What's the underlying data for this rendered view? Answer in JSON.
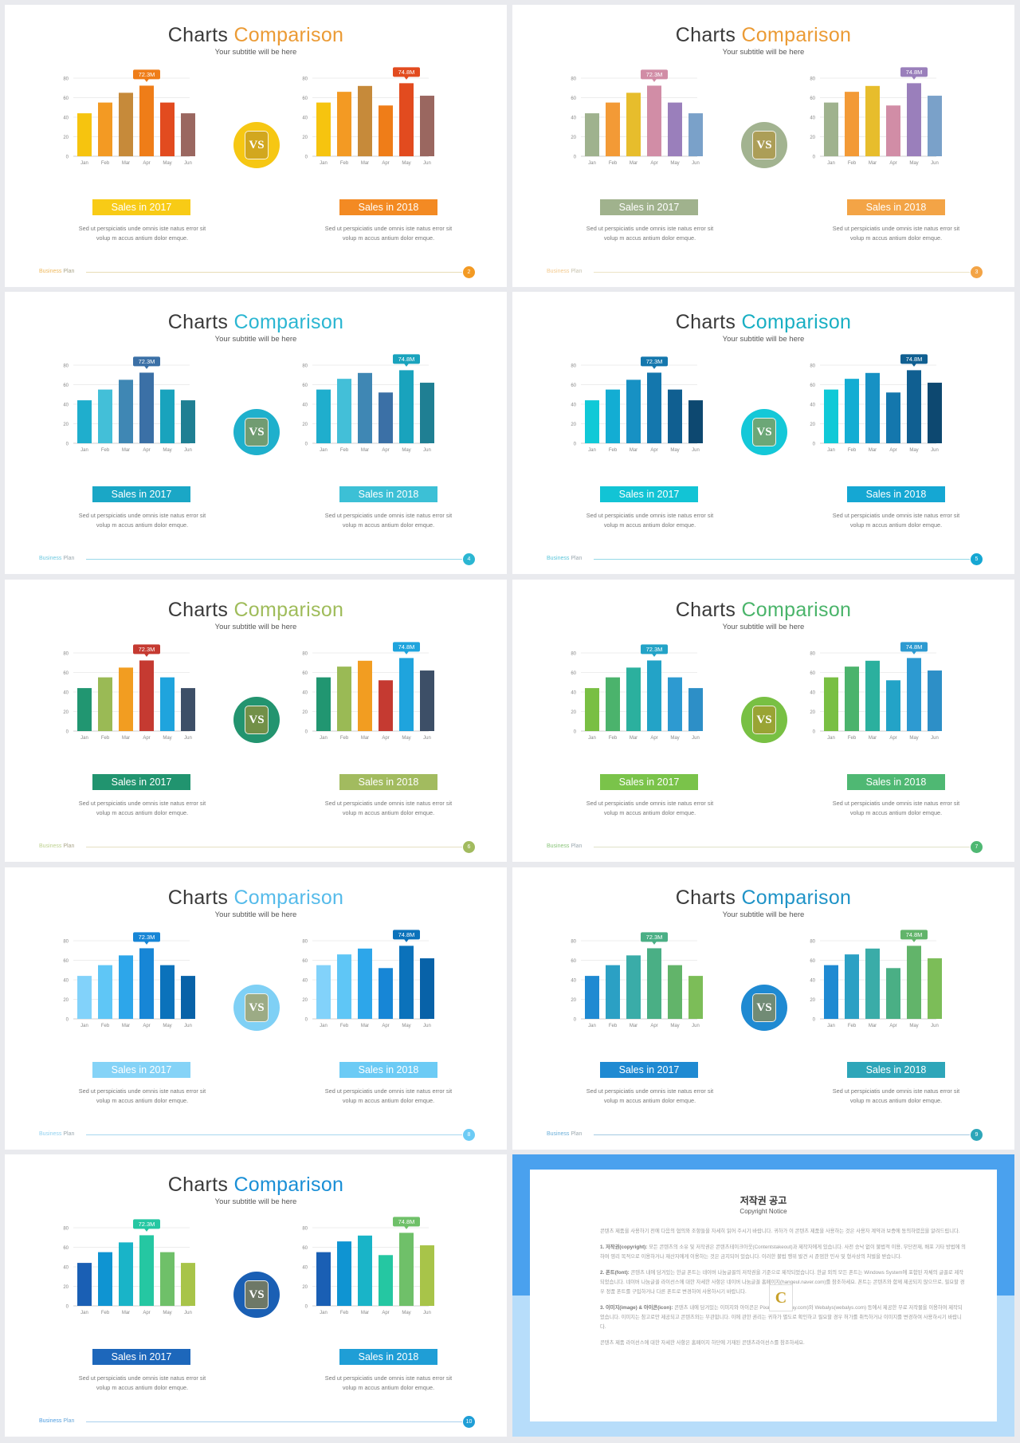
{
  "slides": [
    {
      "title_main": "Charts",
      "title_accent": "Comparison",
      "subtitle": "Your subtitle will be here",
      "accent": "#eb9b35",
      "circle_color": "#f6c713",
      "line_color": "#e8ddb5",
      "footer_a": "#eeb85c",
      "footer_b": "#aaa58a",
      "colors1": [
        "#f6c40f",
        "#f39a23",
        "#c68a3a",
        "#ef7d18",
        "#e24b1f",
        "#9a6760"
      ],
      "colors2": [
        "#f6c40f",
        "#f39a23",
        "#c68a3a",
        "#ef7d18",
        "#e24b1f",
        "#9a6760"
      ],
      "label1_bg": "#f8cb16",
      "label2_bg": "#f38a23",
      "callout1": "#ef7d18",
      "callout2": "#e24b1f",
      "page": "2",
      "page_bg": "#f39a23"
    },
    {
      "title_main": "Charts",
      "title_accent": "Comparison",
      "subtitle": "Your subtitle will be here",
      "accent": "#eb9b35",
      "circle_color": "#a2b390",
      "line_color": "#ede3c6",
      "footer_a": "#f3c98d",
      "footer_b": "#c7c2ad",
      "colors1": [
        "#9fb28e",
        "#f39a36",
        "#e7bd2c",
        "#d18da6",
        "#9a7fbb",
        "#7aa1c9"
      ],
      "colors2": [
        "#9fb28e",
        "#f39a36",
        "#e7bd2c",
        "#d18da6",
        "#9a7fbb",
        "#7aa1c9"
      ],
      "label1_bg": "#a0b28d",
      "label2_bg": "#f3a446",
      "callout1": "#d18da6",
      "callout2": "#9a7fbb",
      "page": "3",
      "page_bg": "#f3a446"
    },
    {
      "title_main": "Charts",
      "title_accent": "Comparison",
      "subtitle": "Your subtitle will be here",
      "accent": "#2bb6d2",
      "circle_color": "#1fb0cc",
      "line_color": "#9ad8ea",
      "footer_a": "#6fc9e0",
      "footer_b": "#9aa7ae",
      "colors1": [
        "#1faecd",
        "#43bfd8",
        "#3f87b4",
        "#3b70a6",
        "#19a3bd",
        "#1f7f93"
      ],
      "colors2": [
        "#1faecd",
        "#43bfd8",
        "#3f87b4",
        "#3b70a6",
        "#19a3bd",
        "#1f7f93"
      ],
      "label1_bg": "#1aa7c6",
      "label2_bg": "#3cc0d6",
      "callout1": "#3b70a6",
      "callout2": "#19a3bd",
      "page": "4",
      "page_bg": "#2bb6d2"
    },
    {
      "title_main": "Charts",
      "title_accent": "Comparison",
      "subtitle": "Your subtitle will be here",
      "accent": "#19afc3",
      "circle_color": "#14c8d8",
      "line_color": "#93d9e6",
      "footer_a": "#5bc6da",
      "footer_b": "#9aa7ae",
      "colors1": [
        "#10c9d7",
        "#13add3",
        "#1791c4",
        "#1477ad",
        "#105f91",
        "#0d4870"
      ],
      "colors2": [
        "#10c9d7",
        "#13add3",
        "#1791c4",
        "#1477ad",
        "#105f91",
        "#0d4870"
      ],
      "label1_bg": "#12c4d5",
      "label2_bg": "#15a7d3",
      "callout1": "#1477ad",
      "callout2": "#105f91",
      "page": "5",
      "page_bg": "#15a7d3"
    },
    {
      "title_main": "Charts",
      "title_accent": "Comparison",
      "subtitle": "Your subtitle will be here",
      "accent": "#9fbc5a",
      "circle_color": "#23946f",
      "line_color": "#e5e0c2",
      "footer_a": "#bdd18e",
      "footer_b": "#aaa58a",
      "colors1": [
        "#219671",
        "#9aba55",
        "#f29d21",
        "#c53a31",
        "#1fa4dd",
        "#3d4f67"
      ],
      "colors2": [
        "#219671",
        "#9aba55",
        "#f29d21",
        "#c53a31",
        "#1fa4dd",
        "#3d4f67"
      ],
      "label1_bg": "#21946f",
      "label2_bg": "#a2bb5f",
      "callout1": "#c53a31",
      "callout2": "#1fa4dd",
      "page": "6",
      "page_bg": "#a2bb5f"
    },
    {
      "title_main": "Charts",
      "title_accent": "Comparison",
      "subtitle": "Your subtitle will be here",
      "accent": "#4ab46a",
      "circle_color": "#78c043",
      "line_color": "#e0e1c8",
      "footer_a": "#8ac47a",
      "footer_b": "#9aa7ae",
      "colors1": [
        "#79bf43",
        "#4bb36c",
        "#2bb09e",
        "#23a3c7",
        "#2d9ad1",
        "#2d8fc7"
      ],
      "colors2": [
        "#79bf43",
        "#4bb36c",
        "#2bb09e",
        "#23a3c7",
        "#2d9ad1",
        "#2d8fc7"
      ],
      "label1_bg": "#7ac34a",
      "label2_bg": "#4fb873",
      "callout1": "#23a3c7",
      "callout2": "#2d9ad1",
      "page": "7",
      "page_bg": "#4fb873"
    },
    {
      "title_main": "Charts",
      "title_accent": "Comparison",
      "subtitle": "Your subtitle will be here",
      "accent": "#56bbea",
      "circle_color": "#7fd0f5",
      "line_color": "#a8d8f0",
      "footer_a": "#8fd0ef",
      "footer_b": "#9aa7ae",
      "colors1": [
        "#82d2fa",
        "#5fc6f6",
        "#2da6ea",
        "#1786d6",
        "#0b72bb",
        "#0862a8"
      ],
      "colors2": [
        "#82d2fa",
        "#5fc6f6",
        "#2da6ea",
        "#1786d6",
        "#0b72bb",
        "#0862a8"
      ],
      "label1_bg": "#85d3f7",
      "label2_bg": "#6ccbf5",
      "callout1": "#1786d6",
      "callout2": "#0b72bb",
      "page": "8",
      "page_bg": "#6ccbf5"
    },
    {
      "title_main": "Charts",
      "title_accent": "Comparison",
      "subtitle": "Your subtitle will be here",
      "accent": "#1f93c7",
      "circle_color": "#1f8ad2",
      "line_color": "#a4c9e2",
      "footer_a": "#6aaed8",
      "footer_b": "#9aa7ae",
      "colors1": [
        "#1f8ad2",
        "#2ba0c4",
        "#3aaca8",
        "#4aaf85",
        "#62b46a",
        "#7cbd58"
      ],
      "colors2": [
        "#1f8ad2",
        "#2ba0c4",
        "#3aaca8",
        "#4aaf85",
        "#62b46a",
        "#7cbd58"
      ],
      "label1_bg": "#1f8ad2",
      "label2_bg": "#2ea6b9",
      "callout1": "#4aaf85",
      "callout2": "#62b46a",
      "page": "9",
      "page_bg": "#2ea6b9"
    },
    {
      "title_main": "Charts",
      "title_accent": "Comparison",
      "subtitle": "Your subtitle will be here",
      "accent": "#1a8fd6",
      "circle_color": "#1a5fb4",
      "line_color": "#a9d0ed",
      "footer_a": "#4b9be0",
      "footer_b": "#6aa8d9",
      "colors1": [
        "#1a5fb4",
        "#0f94d2",
        "#19b4c8",
        "#25c7a2",
        "#6fc069",
        "#a8c449"
      ],
      "colors2": [
        "#1a5fb4",
        "#0f94d2",
        "#19b4c8",
        "#25c7a2",
        "#6fc069",
        "#a8c449"
      ],
      "label1_bg": "#1d67bb",
      "label2_bg": "#1f9ed6",
      "callout1": "#25c7a2",
      "callout2": "#6fc069",
      "page": "10",
      "page_bg": "#1f9ed6"
    }
  ],
  "common": {
    "label1": "Sales in 2017",
    "label2": "Sales in 2018",
    "desc": "Sed ut perspiciatis unde omnis iste natus error sit volup m accus antium dolor emque.",
    "footer_word1": "Business",
    "footer_word2": "Plan",
    "vs_logo": "VS"
  },
  "chart_data": [
    {
      "type": "bar",
      "categories": [
        "Jan",
        "Feb",
        "Mar",
        "Apr",
        "May",
        "Jun"
      ],
      "values": [
        44,
        55,
        65,
        72.3,
        55,
        44
      ],
      "ylim": [
        0,
        80
      ],
      "yticks": [
        0,
        20,
        40,
        60,
        80
      ],
      "callout_index": 3,
      "callout_label": "72.3M"
    },
    {
      "type": "bar",
      "categories": [
        "Jan",
        "Feb",
        "Mar",
        "Apr",
        "May",
        "Jun"
      ],
      "values": [
        55,
        66,
        72,
        52,
        74.8,
        62
      ],
      "ylim": [
        0,
        80
      ],
      "yticks": [
        0,
        20,
        40,
        60,
        80
      ],
      "callout_index": 4,
      "callout_label": "74.8M"
    }
  ],
  "notice": {
    "title": "저작권 공고",
    "subtitle": "Copyright Notice",
    "p0": "콘텐츠 제품을 사용하기 전에 다음의 협의와 조항들을 자세히 읽어 주시기 바랍니다. 귀하가 이 콘텐츠 제품을 사용하는 것은 사용자 계약과 보증에 동의하였음을 알려드립니다.",
    "p1_head": "1. 저작권(copyright):",
    "p1": "모든 콘텐츠의 소유 및 저작권은 콘텐츠테이크아웃(Contentstakeout)과 제작자에게 있습니다. 사전 승낙 없이 불법적 이용, 무단전재, 배포 기타 방법에 의하여 영리 목적으로 이용하거나 재산자에게 이용하는 것은 금지되어 있습니다. 이러한 불법 행위 발견 시 준엄한 민사 및 형사상의 처벌을 받습니다.",
    "p2_head": "2. 폰트(font):",
    "p2": "콘텐츠 내에 담겨있는 한글 폰트는 네이버 나눔글꼴의 저작권을 기준으로 제작되었습니다. 한글 외의 모든 폰트는 Windows System에 포함된 자체의 글꼴로 제작되었습니다. 네이버 나눔글꼴 라이선스에 대한 자세한 사항은 네이버 나눔글꼴 홈페이지(hangeul.naver.com)를 참조하세요. 폰트는 콘텐츠와 함께 제공되지 않으므로, 필요할 경우 정품 폰트를 구입하거나 다른 폰트로 변경하여 사용하시기 바랍니다.",
    "p3_head": "3. 이미지(image) & 아이콘(icon):",
    "p3": "콘텐츠 내에 담겨있는 이미지와 아이콘은 Pixabay(pixabay.com)와 Webalys(webalys.com) 등에서 제공한 무료 저작물을 이용하여 제작되었습니다. 이미지는 참고로만 제공되고 콘텐츠와는 무관합니다. 이에 관한 권리는 귀하가 별도로 확인하고 필요할 경우 허가를 취득하거나 이미지를 변경하여 사용하시기 바랍니다.",
    "p4": "콘텐츠 제품 라이선스에 대한 자세한 사항은 홈페이지 하단에 기재된 콘텐츠라이선스를 참조하세요.",
    "logo_letter": "C",
    "band_color": "#4aa1ee",
    "bg_color": "#b7ddfa"
  }
}
